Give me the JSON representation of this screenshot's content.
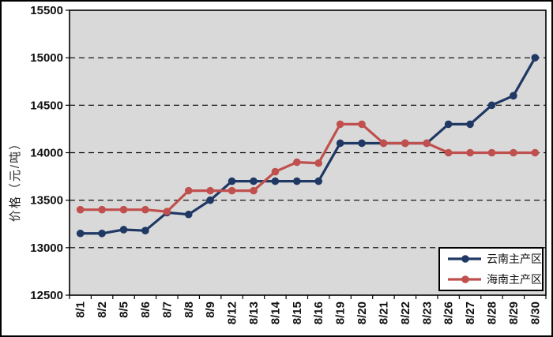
{
  "chart_data": {
    "type": "line",
    "title": "",
    "xlabel": "",
    "ylabel": "价格（元/吨）",
    "ylim": [
      12500,
      15500
    ],
    "yticks": [
      12500,
      13000,
      13500,
      14000,
      14500,
      15000,
      15500
    ],
    "grid": "horizontal-dashed",
    "plot_background": "#d9d9d9",
    "grid_color": "#000000",
    "legend_position": "bottom-right",
    "categories": [
      "8/1",
      "8/2",
      "8/5",
      "8/6",
      "8/7",
      "8/8",
      "8/9",
      "8/12",
      "8/13",
      "8/14",
      "8/15",
      "8/16",
      "8/19",
      "8/20",
      "8/21",
      "8/22",
      "8/23",
      "8/26",
      "8/27",
      "8/28",
      "8/29",
      "8/30"
    ],
    "series": [
      {
        "name": "云南主产区",
        "color": "#1f3864",
        "marker": "circle",
        "values": [
          13150,
          13150,
          13190,
          13180,
          13370,
          13350,
          13500,
          13700,
          13700,
          13700,
          13700,
          13700,
          14100,
          14100,
          14100,
          14100,
          14100,
          14300,
          14300,
          14500,
          14600,
          15000
        ]
      },
      {
        "name": "海南主产区",
        "color": "#c0504d",
        "marker": "circle",
        "values": [
          13400,
          13400,
          13400,
          13400,
          13380,
          13600,
          13600,
          13600,
          13600,
          13800,
          13900,
          13890,
          14300,
          14300,
          14100,
          14100,
          14100,
          14000,
          14000,
          14000,
          14000,
          14000
        ]
      }
    ]
  }
}
